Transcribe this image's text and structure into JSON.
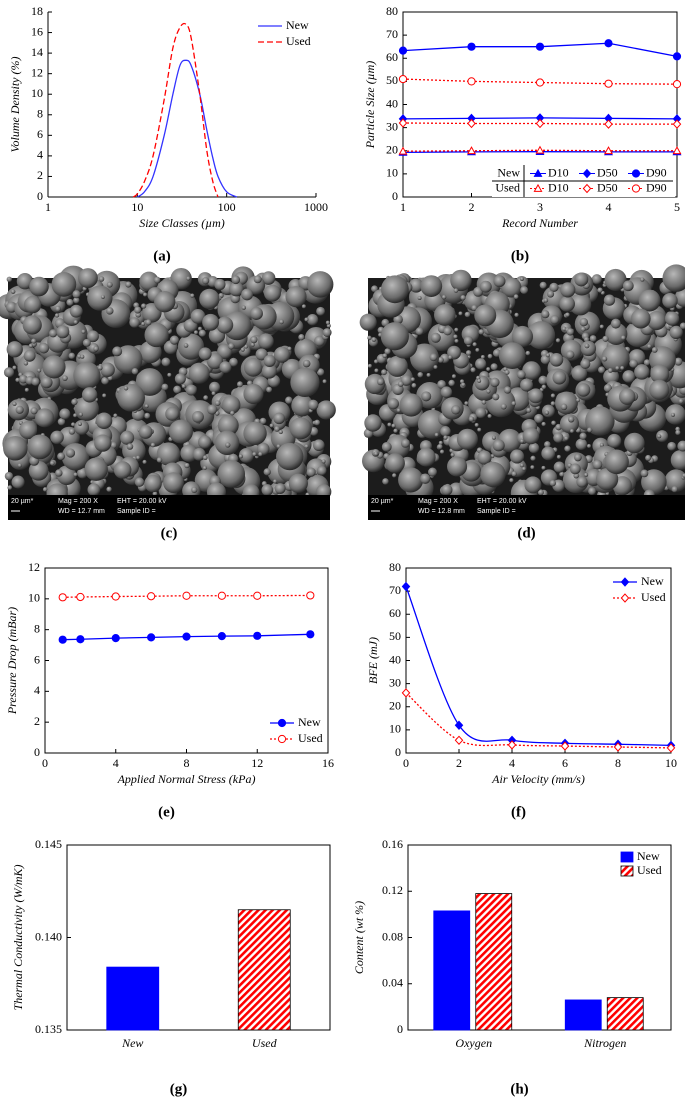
{
  "chart_data": [
    {
      "type": "line",
      "label": "(a)",
      "xlabel": "Size Classes (µm)",
      "ylabel": "Volume Density (%)",
      "xscale": "log",
      "xlim": [
        1,
        1000
      ],
      "xticks": [
        1,
        10,
        100,
        1000
      ],
      "ylim": [
        0,
        18
      ],
      "yticks": [
        0,
        2,
        4,
        6,
        8,
        10,
        12,
        14,
        16,
        18
      ],
      "smooth": true,
      "legend": "upper right",
      "series": [
        {
          "name": "New",
          "color": "#3333ff",
          "dash": "solid",
          "x": [
            10,
            12,
            15,
            20,
            25,
            30,
            35,
            40,
            50,
            60,
            70,
            80,
            100,
            130
          ],
          "values": [
            0,
            0.5,
            2,
            6,
            10,
            12.8,
            13.3,
            12.8,
            10,
            6.5,
            3.8,
            2,
            0.5,
            0
          ]
        },
        {
          "name": "Used",
          "color": "#ff0000",
          "dash": "dashed",
          "x": [
            9,
            10,
            12,
            15,
            20,
            25,
            30,
            35,
            40,
            50,
            60,
            70,
            80
          ],
          "values": [
            0,
            0.3,
            1.5,
            4,
            9.5,
            14.5,
            16.5,
            16.8,
            15.5,
            10,
            4.5,
            1.5,
            0
          ]
        }
      ]
    },
    {
      "type": "line",
      "label": "(b)",
      "xlabel": "Record Number",
      "ylabel": "Particle Size (µm)",
      "x": [
        1,
        2,
        3,
        4,
        5
      ],
      "xlim": [
        1,
        5
      ],
      "xticks": [
        1,
        2,
        3,
        4,
        5
      ],
      "ylim": [
        0,
        80
      ],
      "yticks": [
        0,
        10,
        20,
        30,
        40,
        50,
        60,
        70,
        80
      ],
      "legend": "table",
      "series": [
        {
          "group": "New",
          "name": "D10",
          "color": "#0000ff",
          "dash": "solid",
          "marker": "triangle",
          "filled": true,
          "values": [
            19.3,
            19.5,
            19.6,
            19.5,
            19.5
          ]
        },
        {
          "group": "New",
          "name": "D50",
          "color": "#0000ff",
          "dash": "solid",
          "marker": "diamond",
          "filled": true,
          "values": [
            33.8,
            34,
            34.2,
            34,
            33.8
          ]
        },
        {
          "group": "New",
          "name": "D90",
          "color": "#0000ff",
          "dash": "solid",
          "marker": "circle",
          "filled": true,
          "values": [
            63.3,
            65,
            65,
            66.5,
            60.8
          ]
        },
        {
          "group": "Used",
          "name": "D10",
          "color": "#ff0000",
          "dash": "dotted",
          "marker": "triangle",
          "filled": false,
          "values": [
            19.8,
            20,
            20.2,
            20,
            20
          ]
        },
        {
          "group": "Used",
          "name": "D50",
          "color": "#ff0000",
          "dash": "dotted",
          "marker": "diamond",
          "filled": false,
          "values": [
            32,
            31.8,
            31.8,
            31.5,
            31.5
          ]
        },
        {
          "group": "Used",
          "name": "D90",
          "color": "#ff0000",
          "dash": "dotted",
          "marker": "circle",
          "filled": false,
          "values": [
            51,
            50,
            49.5,
            49,
            48.8
          ]
        }
      ]
    },
    {
      "type": "line",
      "label": "(e)",
      "xlabel": "Applied Normal Stress (kPa)",
      "ylabel": "Pressure Drop (mBar)",
      "x": [
        1,
        2,
        4,
        6,
        8,
        10,
        12,
        15
      ],
      "xlim": [
        0,
        16
      ],
      "xticks": [
        0,
        4,
        8,
        12,
        16
      ],
      "ylim": [
        0,
        12
      ],
      "yticks": [
        0,
        2,
        4,
        6,
        8,
        10,
        12
      ],
      "legend": "lower right",
      "series": [
        {
          "name": "New",
          "color": "#0000ff",
          "dash": "solid",
          "marker": "circle",
          "filled": true,
          "values": [
            7.35,
            7.38,
            7.45,
            7.5,
            7.55,
            7.58,
            7.6,
            7.7
          ]
        },
        {
          "name": "Used",
          "color": "#ff0000",
          "dash": "dotted",
          "marker": "circle",
          "filled": false,
          "values": [
            10.1,
            10.12,
            10.15,
            10.17,
            10.2,
            10.2,
            10.2,
            10.22
          ]
        }
      ]
    },
    {
      "type": "line",
      "label": "(f)",
      "xlabel": "Air Velocity (mm/s)",
      "ylabel": "BFE (mJ)",
      "x": [
        0,
        2,
        4,
        6,
        8,
        10
      ],
      "xlim": [
        0,
        10
      ],
      "xticks": [
        0,
        2,
        4,
        6,
        8,
        10
      ],
      "ylim": [
        0,
        80
      ],
      "yticks": [
        0,
        10,
        20,
        30,
        40,
        50,
        60,
        70,
        80
      ],
      "smooth": true,
      "legend": "upper right",
      "series": [
        {
          "name": "New",
          "color": "#0000ff",
          "dash": "solid",
          "marker": "diamond",
          "filled": true,
          "values": [
            72,
            12,
            5.5,
            4.2,
            3.8,
            3.3
          ]
        },
        {
          "name": "Used",
          "color": "#ff0000",
          "dash": "dotted",
          "marker": "diamond",
          "filled": false,
          "values": [
            26,
            5.5,
            3.5,
            3,
            2.6,
            2.2
          ]
        }
      ]
    },
    {
      "type": "bar",
      "label": "(g)",
      "ylabel": "Thermal Conductivity (W/mK)",
      "categories": [
        "New",
        "Used"
      ],
      "values": [
        0.1384,
        0.1415
      ],
      "colors": [
        "#0000ff",
        "#ff0000"
      ],
      "hatched": [
        false,
        true
      ],
      "ylim": [
        0.135,
        0.145
      ],
      "yticks": [
        0.135,
        {
          "value": 0.14,
          "label": "0.140"
        },
        0.145
      ]
    },
    {
      "type": "bar",
      "label": "(h)",
      "ylabel": "Content (wt %)",
      "legend": "upper right",
      "categories": [
        "Oxygen",
        "Nitrogen"
      ],
      "ylim": [
        0,
        0.16
      ],
      "yticks": [
        0,
        0.04,
        0.08,
        0.12,
        0.16
      ],
      "series": [
        {
          "name": "New",
          "color": "#0000ff",
          "hatched": false,
          "values": [
            0.103,
            0.026
          ]
        },
        {
          "name": "Used",
          "color": "#ff0000",
          "hatched": true,
          "values": [
            0.118,
            0.028
          ]
        }
      ]
    }
  ],
  "images": [
    {
      "label": "(c)",
      "scale": "20 µm*",
      "mag": "Mag =  200 X",
      "wd": "WD = 12.7 mm",
      "eht": "EHT = 20.00 kV",
      "sample": "Sample ID ="
    },
    {
      "label": "(d)",
      "scale": "20 µm*",
      "mag": "Mag =  200 X",
      "wd": "WD = 12.8 mm",
      "eht": "EHT = 20.00 kV",
      "sample": "Sample ID ="
    }
  ]
}
